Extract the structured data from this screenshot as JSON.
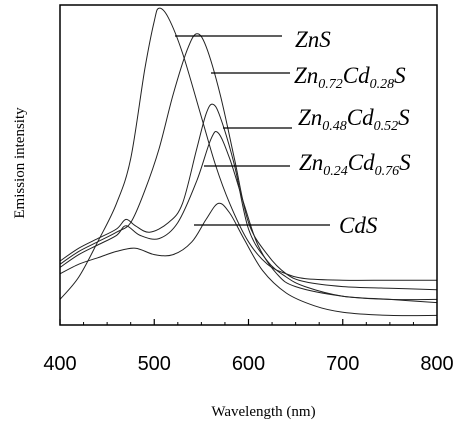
{
  "chart_data": {
    "type": "line",
    "title": "",
    "xlabel": "Wavelength (nm)",
    "ylabel": "Emission intensity",
    "xlim": [
      400,
      800
    ],
    "ylim": [
      0,
      1
    ],
    "x_ticks": [
      "400",
      "500",
      "600",
      "700",
      "800"
    ],
    "y_ticks": [],
    "grid": false,
    "legend": "inline-labels-with-leader-lines",
    "series": [
      {
        "name": "ZnS",
        "label_parts": [
          {
            "t": "ZnS"
          }
        ],
        "points": [
          [
            400,
            0.08
          ],
          [
            420,
            0.15
          ],
          [
            440,
            0.26
          ],
          [
            460,
            0.38
          ],
          [
            475,
            0.52
          ],
          [
            490,
            0.8
          ],
          [
            500,
            0.95
          ],
          [
            505,
            0.99
          ],
          [
            515,
            0.96
          ],
          [
            530,
            0.85
          ],
          [
            550,
            0.65
          ],
          [
            565,
            0.5
          ],
          [
            580,
            0.38
          ],
          [
            600,
            0.26
          ],
          [
            620,
            0.19
          ],
          [
            640,
            0.16
          ],
          [
            660,
            0.145
          ],
          [
            700,
            0.14
          ],
          [
            750,
            0.14
          ],
          [
            800,
            0.14
          ]
        ]
      },
      {
        "name": "Zn0.72Cd0.28S",
        "label_parts": [
          {
            "t": "Zn"
          },
          {
            "t": "0.72",
            "sub": true
          },
          {
            "t": "Cd"
          },
          {
            "t": "0.28",
            "sub": true
          },
          {
            "t": "S"
          }
        ],
        "points": [
          [
            400,
            0.19
          ],
          [
            420,
            0.23
          ],
          [
            440,
            0.26
          ],
          [
            460,
            0.29
          ],
          [
            475,
            0.32
          ],
          [
            490,
            0.42
          ],
          [
            505,
            0.55
          ],
          [
            520,
            0.72
          ],
          [
            535,
            0.86
          ],
          [
            545,
            0.91
          ],
          [
            555,
            0.87
          ],
          [
            570,
            0.72
          ],
          [
            585,
            0.52
          ],
          [
            600,
            0.32
          ],
          [
            620,
            0.22
          ],
          [
            640,
            0.16
          ],
          [
            660,
            0.135
          ],
          [
            700,
            0.12
          ],
          [
            750,
            0.115
          ],
          [
            800,
            0.11
          ]
        ]
      },
      {
        "name": "Zn0.48Cd0.52S",
        "label_parts": [
          {
            "t": "Zn"
          },
          {
            "t": "0.48",
            "sub": true
          },
          {
            "t": "Cd"
          },
          {
            "t": "0.52",
            "sub": true
          },
          {
            "t": "S"
          }
        ],
        "points": [
          [
            400,
            0.2
          ],
          [
            420,
            0.24
          ],
          [
            440,
            0.27
          ],
          [
            460,
            0.3
          ],
          [
            470,
            0.33
          ],
          [
            480,
            0.31
          ],
          [
            495,
            0.29
          ],
          [
            515,
            0.32
          ],
          [
            530,
            0.38
          ],
          [
            545,
            0.55
          ],
          [
            555,
            0.66
          ],
          [
            562,
            0.69
          ],
          [
            570,
            0.65
          ],
          [
            585,
            0.5
          ],
          [
            600,
            0.3
          ],
          [
            620,
            0.2
          ],
          [
            640,
            0.15
          ],
          [
            660,
            0.12
          ],
          [
            700,
            0.09
          ],
          [
            750,
            0.08
          ],
          [
            800,
            0.08
          ]
        ]
      },
      {
        "name": "Zn0.24Cd0.76S",
        "label_parts": [
          {
            "t": "Zn"
          },
          {
            "t": "0.24",
            "sub": true
          },
          {
            "t": "Cd"
          },
          {
            "t": "0.76",
            "sub": true
          },
          {
            "t": "S"
          }
        ],
        "points": [
          [
            400,
            0.18
          ],
          [
            420,
            0.22
          ],
          [
            440,
            0.25
          ],
          [
            460,
            0.28
          ],
          [
            470,
            0.31
          ],
          [
            485,
            0.28
          ],
          [
            505,
            0.27
          ],
          [
            525,
            0.32
          ],
          [
            545,
            0.45
          ],
          [
            560,
            0.58
          ],
          [
            568,
            0.6
          ],
          [
            580,
            0.52
          ],
          [
            595,
            0.38
          ],
          [
            610,
            0.25
          ],
          [
            630,
            0.16
          ],
          [
            650,
            0.12
          ],
          [
            700,
            0.09
          ],
          [
            750,
            0.08
          ],
          [
            800,
            0.07
          ]
        ]
      },
      {
        "name": "CdS",
        "label_parts": [
          {
            "t": "CdS"
          }
        ],
        "points": [
          [
            400,
            0.16
          ],
          [
            420,
            0.19
          ],
          [
            440,
            0.21
          ],
          [
            460,
            0.23
          ],
          [
            480,
            0.24
          ],
          [
            500,
            0.22
          ],
          [
            520,
            0.22
          ],
          [
            540,
            0.26
          ],
          [
            555,
            0.33
          ],
          [
            568,
            0.38
          ],
          [
            580,
            0.35
          ],
          [
            595,
            0.27
          ],
          [
            615,
            0.17
          ],
          [
            640,
            0.1
          ],
          [
            670,
            0.06
          ],
          [
            700,
            0.04
          ],
          [
            750,
            0.03
          ],
          [
            800,
            0.03
          ]
        ]
      }
    ]
  }
}
